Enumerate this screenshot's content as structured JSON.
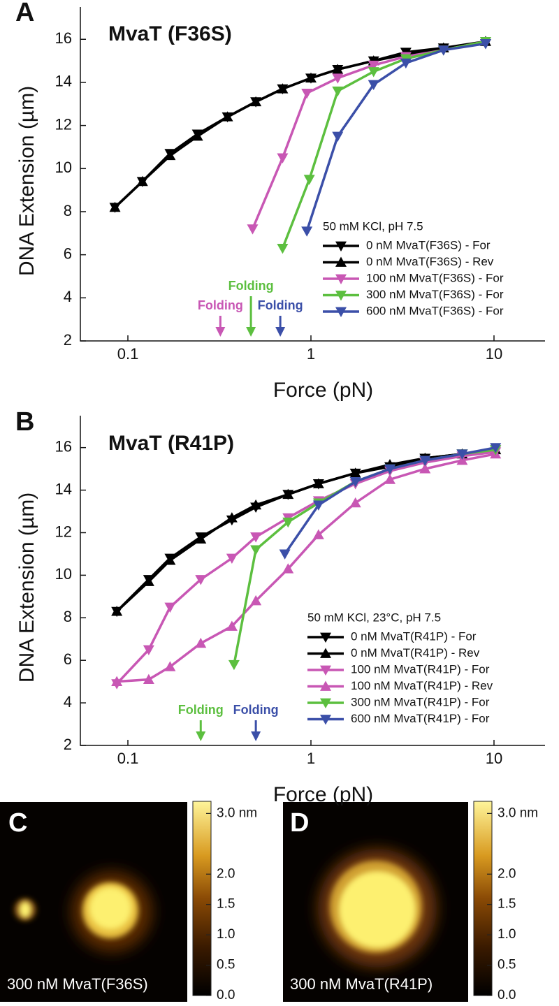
{
  "chart_data": [
    {
      "type": "line",
      "panel_label": "A",
      "title": "MvaT (F36S)",
      "x_label": "Force (pN)",
      "y_label": "DNA Extension (µm)",
      "log_x": true,
      "xlim": [
        0.055,
        19
      ],
      "xticks": [
        0.1,
        1,
        10
      ],
      "ylim": [
        2,
        17.5
      ],
      "yticks": [
        2,
        4,
        6,
        8,
        10,
        12,
        14,
        16
      ],
      "legend_title": "50 mM KCl, pH 7.5",
      "series": [
        {
          "name": "0 nM MvaT(F36S) - For",
          "color": "#000000",
          "marker": "down",
          "x": [
            0.085,
            0.12,
            0.17,
            0.24,
            0.35,
            0.5,
            0.7,
            1.0,
            1.4,
            2.2,
            3.3,
            5.3,
            9.0
          ],
          "values": [
            8.2,
            9.4,
            10.7,
            11.6,
            12.4,
            13.1,
            13.7,
            14.2,
            14.6,
            15.0,
            15.4,
            15.6,
            15.8
          ]
        },
        {
          "name": "0 nM MvaT(F36S) - Rev",
          "color": "#000000",
          "marker": "up",
          "x": [
            0.085,
            0.12,
            0.17,
            0.24,
            0.35,
            0.5,
            0.7,
            1.0,
            1.4,
            2.2,
            3.3,
            5.3,
            9.0
          ],
          "values": [
            8.2,
            9.4,
            10.6,
            11.5,
            12.4,
            13.1,
            13.7,
            14.2,
            14.6,
            15.0,
            15.3,
            15.6,
            15.9
          ]
        },
        {
          "name": "100 nM MvaT(F36S) - For",
          "color": "#c857b4",
          "marker": "down",
          "x": [
            0.48,
            0.7,
            0.95,
            1.4,
            2.2,
            3.3,
            5.3,
            9.0
          ],
          "values": [
            7.2,
            10.5,
            13.5,
            14.2,
            14.8,
            15.2,
            15.5,
            15.9
          ]
        },
        {
          "name": "300 nM MvaT(F36S) - For",
          "color": "#5cbf3f",
          "marker": "down",
          "x": [
            0.7,
            0.98,
            1.4,
            2.2,
            3.3,
            5.3,
            9.0
          ],
          "values": [
            6.3,
            9.5,
            13.6,
            14.5,
            15.1,
            15.5,
            15.9
          ]
        },
        {
          "name": "600 nM MvaT(F36S) - For",
          "color": "#3b4fa8",
          "marker": "down",
          "x": [
            0.95,
            1.4,
            2.2,
            3.3,
            5.3,
            9.0
          ],
          "values": [
            7.1,
            11.5,
            13.9,
            14.9,
            15.5,
            15.8
          ]
        }
      ],
      "annotations": [
        {
          "text": "Folding",
          "x": 0.32,
          "color": "#c857b4"
        },
        {
          "text": "Folding",
          "x": 0.47,
          "color": "#5cbf3f"
        },
        {
          "text": "Folding",
          "x": 0.68,
          "color": "#3b4fa8"
        }
      ]
    },
    {
      "type": "line",
      "panel_label": "B",
      "title": "MvaT (R41P)",
      "x_label": "Force (pN)",
      "y_label": "DNA Extension (µm)",
      "log_x": true,
      "xlim": [
        0.055,
        19
      ],
      "xticks": [
        0.1,
        1,
        10
      ],
      "ylim": [
        2,
        17.5
      ],
      "yticks": [
        2,
        4,
        6,
        8,
        10,
        12,
        14,
        16
      ],
      "legend_title": "50 mM KCl, 23°C, pH 7.5",
      "series": [
        {
          "name": "0 nM MvaT(R41P) - For",
          "color": "#000000",
          "marker": "down",
          "x": [
            0.087,
            0.13,
            0.17,
            0.25,
            0.37,
            0.5,
            0.75,
            1.1,
            1.75,
            2.7,
            4.2,
            6.7,
            10.2
          ],
          "values": [
            8.3,
            9.8,
            10.8,
            11.8,
            12.6,
            13.2,
            13.8,
            14.3,
            14.8,
            15.1,
            15.5,
            15.7,
            15.9
          ]
        },
        {
          "name": "0 nM MvaT(R41P) - Rev",
          "color": "#000000",
          "marker": "up",
          "x": [
            0.087,
            0.13,
            0.17,
            0.25,
            0.37,
            0.5,
            0.75,
            1.1,
            1.75,
            2.7,
            4.2,
            6.7,
            10.2
          ],
          "values": [
            8.3,
            9.7,
            10.7,
            11.7,
            12.7,
            13.3,
            13.8,
            14.3,
            14.8,
            15.2,
            15.5,
            15.7,
            15.9
          ]
        },
        {
          "name": "100 nM MvaT(R41P) - For",
          "color": "#c857b4",
          "marker": "down",
          "x": [
            0.087,
            0.13,
            0.17,
            0.25,
            0.37,
            0.5,
            0.75,
            1.1,
            1.75,
            2.7,
            4.2,
            6.7,
            10.2
          ],
          "values": [
            4.9,
            6.5,
            8.5,
            9.8,
            10.8,
            11.8,
            12.7,
            13.5,
            14.3,
            14.9,
            15.3,
            15.6,
            15.8
          ]
        },
        {
          "name": "100 nM MvaT(R41P) - Rev",
          "color": "#c857b4",
          "marker": "up",
          "x": [
            0.087,
            0.13,
            0.17,
            0.25,
            0.37,
            0.5,
            0.75,
            1.1,
            1.75,
            2.7,
            4.2,
            6.7,
            10.2
          ],
          "values": [
            5.0,
            5.1,
            5.7,
            6.8,
            7.6,
            8.8,
            10.3,
            11.9,
            13.4,
            14.5,
            15.0,
            15.4,
            15.7
          ]
        },
        {
          "name": "300 nM MvaT(R41P) - For",
          "color": "#5cbf3f",
          "marker": "down",
          "x": [
            0.38,
            0.5,
            0.75,
            1.1,
            1.75,
            2.7,
            4.2,
            6.7,
            10.2
          ],
          "values": [
            5.8,
            11.2,
            12.5,
            13.4,
            14.4,
            15.0,
            15.4,
            15.7,
            15.9
          ]
        },
        {
          "name": "600 nM MvaT(R41P) - For",
          "color": "#3b4fa8",
          "marker": "down",
          "x": [
            0.72,
            1.1,
            1.75,
            2.7,
            4.2,
            6.7,
            10.2
          ],
          "values": [
            11.0,
            13.3,
            14.4,
            15.0,
            15.4,
            15.7,
            16.0
          ]
        }
      ],
      "annotations": [
        {
          "text": "Folding",
          "x": 0.25,
          "color": "#5cbf3f"
        },
        {
          "text": "Folding",
          "x": 0.5,
          "color": "#3b4fa8"
        }
      ]
    }
  ],
  "images": [
    {
      "label": "C",
      "caption": "300 nM MvaT(F36S)",
      "colorbar": {
        "clim": [
          0,
          3.2
        ],
        "ticks": [
          {
            "value": 3,
            "label": "3.0 nm"
          },
          {
            "value": 2,
            "label": "2.0"
          },
          1.5,
          {
            "value": 1,
            "label": "1.0"
          },
          0.5,
          {
            "value": 0,
            "label": "0.0"
          }
        ]
      }
    },
    {
      "label": "D",
      "caption": "300 nM MvaT(R41P)",
      "colorbar": {
        "clim": [
          0,
          3.2
        ],
        "ticks": [
          {
            "value": 3,
            "label": "3.0 nm"
          },
          {
            "value": 2,
            "label": "2.0"
          },
          1.5,
          {
            "value": 1,
            "label": "1.0"
          },
          0.5,
          {
            "value": 0,
            "label": "0.0"
          }
        ]
      }
    }
  ]
}
